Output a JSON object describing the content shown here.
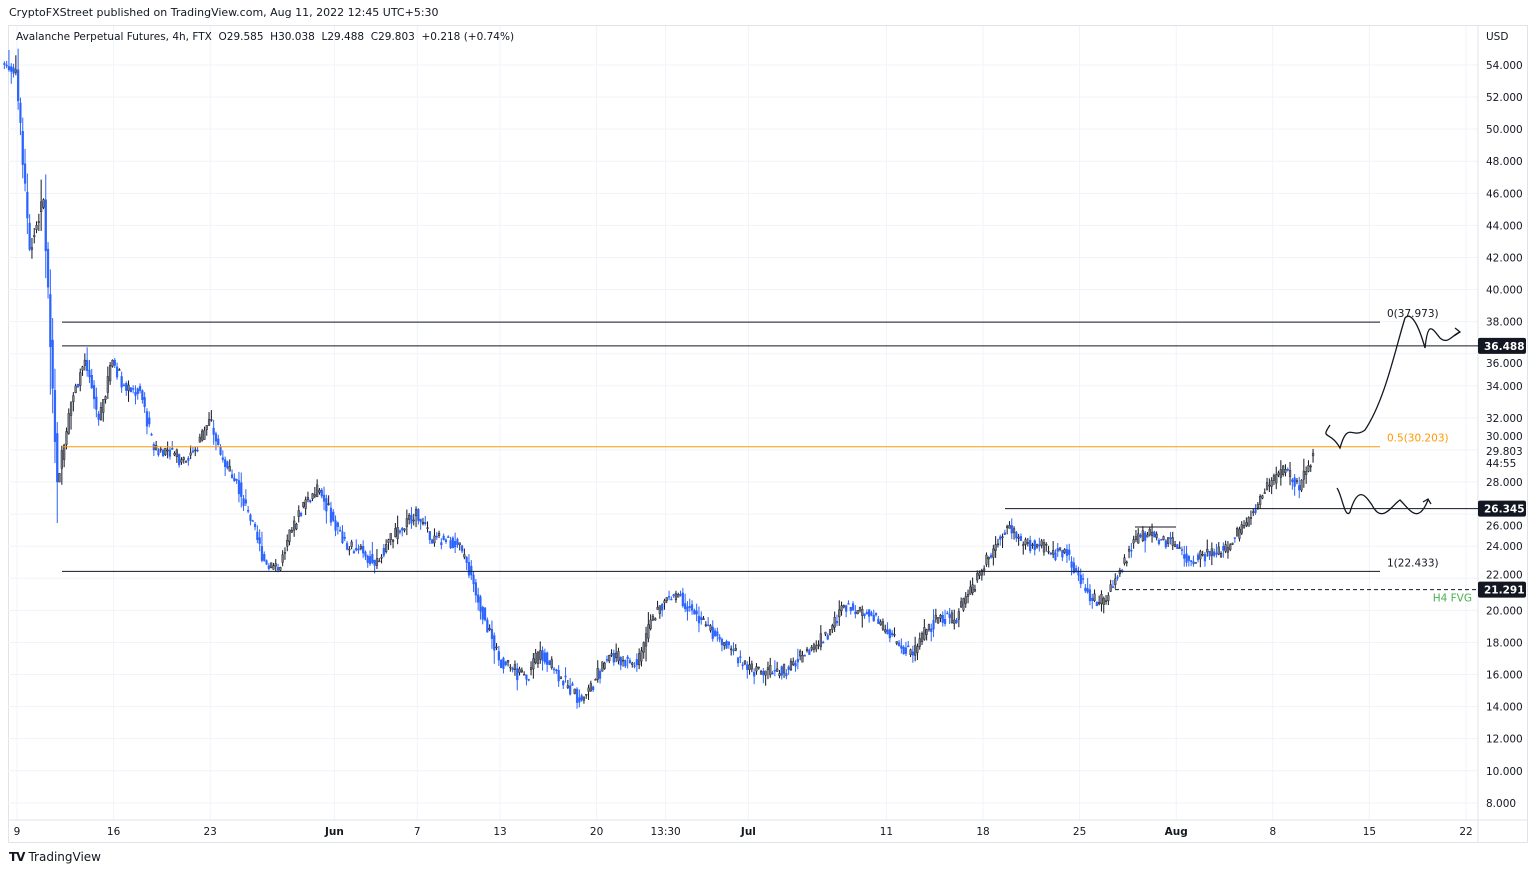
{
  "header": {
    "published": "CryptoFXStreet published on TradingView.com, Aug 11, 2022 12:45 UTC+5:30",
    "legend": "Avalanche Perpetual Futures, 4h, FTX  O29.585  H30.038  L29.488  C29.803  +0.218 (+0.74%)"
  },
  "footer": {
    "brand": "TradingView",
    "logo": "TV"
  },
  "chart_data": {
    "type": "candlestick",
    "title": "Avalanche Perpetual Futures, 4h, FTX",
    "currency": "USD",
    "ylim": [
      7,
      56
    ],
    "y_ticks": [
      "8.000",
      "10.000",
      "12.000",
      "14.000",
      "16.000",
      "18.000",
      "20.000",
      "22.000",
      "24.000",
      "26.000",
      "28.000",
      "30.000",
      "32.000",
      "34.000",
      "36.000",
      "38.000",
      "40.000",
      "42.000",
      "44.000",
      "46.000",
      "48.000",
      "50.000",
      "52.000",
      "54.000"
    ],
    "x_ticks": [
      {
        "label": "9",
        "date": "2022-05-09",
        "bold": false
      },
      {
        "label": "16",
        "date": "2022-05-16",
        "bold": false
      },
      {
        "label": "23",
        "date": "2022-05-23",
        "bold": false
      },
      {
        "label": "Jun",
        "date": "2022-06-01",
        "bold": true
      },
      {
        "label": "7",
        "date": "2022-06-07",
        "bold": false
      },
      {
        "label": "13",
        "date": "2022-06-13",
        "bold": false
      },
      {
        "label": "20",
        "date": "2022-06-20",
        "bold": false
      },
      {
        "label": "13:30",
        "date": "2022-06-25",
        "bold": false
      },
      {
        "label": "Jul",
        "date": "2022-07-01",
        "bold": true
      },
      {
        "label": "11",
        "date": "2022-07-11",
        "bold": false
      },
      {
        "label": "18",
        "date": "2022-07-18",
        "bold": false
      },
      {
        "label": "25",
        "date": "2022-07-25",
        "bold": false
      },
      {
        "label": "Aug",
        "date": "2022-08-01",
        "bold": true
      },
      {
        "label": "8",
        "date": "2022-08-08",
        "bold": false
      },
      {
        "label": "15",
        "date": "2022-08-15",
        "bold": false
      },
      {
        "label": "22",
        "date": "2022-08-22",
        "bold": false
      }
    ],
    "x_range": [
      "2022-05-09",
      "2022-08-24"
    ],
    "daily_close": [
      [
        "2022-05-09",
        53.7
      ],
      [
        "2022-05-10",
        42.5
      ],
      [
        "2022-05-11",
        45.6
      ],
      [
        "2022-05-12",
        28.0
      ],
      [
        "2022-05-13",
        33.0
      ],
      [
        "2022-05-14",
        35.6
      ],
      [
        "2022-05-15",
        31.9
      ],
      [
        "2022-05-16",
        35.6
      ],
      [
        "2022-05-17",
        33.7
      ],
      [
        "2022-05-18",
        33.7
      ],
      [
        "2022-05-19",
        30.0
      ],
      [
        "2022-05-20",
        30.0
      ],
      [
        "2022-05-21",
        29.4
      ],
      [
        "2022-05-22",
        30.0
      ],
      [
        "2022-05-23",
        31.9
      ],
      [
        "2022-05-24",
        29.4
      ],
      [
        "2022-05-25",
        28.1
      ],
      [
        "2022-05-26",
        25.6
      ],
      [
        "2022-05-27",
        23.1
      ],
      [
        "2022-05-28",
        22.5
      ],
      [
        "2022-05-29",
        25.0
      ],
      [
        "2022-05-30",
        26.9
      ],
      [
        "2022-05-31",
        27.5
      ],
      [
        "2022-06-01",
        25.6
      ],
      [
        "2022-06-02",
        23.8
      ],
      [
        "2022-06-03",
        24.0
      ],
      [
        "2022-06-04",
        22.8
      ],
      [
        "2022-06-05",
        24.4
      ],
      [
        "2022-06-06",
        25.0
      ],
      [
        "2022-06-07",
        26.3
      ],
      [
        "2022-06-08",
        24.4
      ],
      [
        "2022-06-09",
        24.4
      ],
      [
        "2022-06-10",
        24.1
      ],
      [
        "2022-06-11",
        22.2
      ],
      [
        "2022-06-12",
        19.4
      ],
      [
        "2022-06-13",
        16.9
      ],
      [
        "2022-06-14",
        16.3
      ],
      [
        "2022-06-15",
        15.7
      ],
      [
        "2022-06-16",
        17.5
      ],
      [
        "2022-06-17",
        16.3
      ],
      [
        "2022-06-18",
        15.3
      ],
      [
        "2022-06-19",
        14.4
      ],
      [
        "2022-06-20",
        15.7
      ],
      [
        "2022-06-21",
        17.2
      ],
      [
        "2022-06-22",
        16.9
      ],
      [
        "2022-06-23",
        16.6
      ],
      [
        "2022-06-24",
        19.4
      ],
      [
        "2022-06-25",
        20.6
      ],
      [
        "2022-06-26",
        21.0
      ],
      [
        "2022-06-27",
        20.0
      ],
      [
        "2022-06-28",
        19.1
      ],
      [
        "2022-06-29",
        18.2
      ],
      [
        "2022-06-30",
        17.5
      ],
      [
        "2022-07-01",
        16.3
      ],
      [
        "2022-07-02",
        16.2
      ],
      [
        "2022-07-03",
        16.2
      ],
      [
        "2022-07-04",
        16.3
      ],
      [
        "2022-07-05",
        17.2
      ],
      [
        "2022-07-06",
        17.8
      ],
      [
        "2022-07-07",
        18.8
      ],
      [
        "2022-07-08",
        20.3
      ],
      [
        "2022-07-09",
        20.0
      ],
      [
        "2022-07-10",
        19.7
      ],
      [
        "2022-07-11",
        18.8
      ],
      [
        "2022-07-12",
        17.8
      ],
      [
        "2022-07-13",
        17.2
      ],
      [
        "2022-07-14",
        18.8
      ],
      [
        "2022-07-15",
        19.7
      ],
      [
        "2022-07-16",
        19.4
      ],
      [
        "2022-07-17",
        21.0
      ],
      [
        "2022-07-18",
        22.5
      ],
      [
        "2022-07-19",
        24.1
      ],
      [
        "2022-07-20",
        25.3
      ],
      [
        "2022-07-21",
        24.1
      ],
      [
        "2022-07-22",
        24.1
      ],
      [
        "2022-07-23",
        23.5
      ],
      [
        "2022-07-24",
        23.8
      ],
      [
        "2022-07-25",
        22.2
      ],
      [
        "2022-07-26",
        20.6
      ],
      [
        "2022-07-27",
        20.6
      ],
      [
        "2022-07-28",
        22.5
      ],
      [
        "2022-07-29",
        24.4
      ],
      [
        "2022-07-30",
        24.7
      ],
      [
        "2022-07-31",
        24.4
      ],
      [
        "2022-08-01",
        24.1
      ],
      [
        "2022-08-02",
        23.1
      ],
      [
        "2022-08-03",
        23.5
      ],
      [
        "2022-08-04",
        23.5
      ],
      [
        "2022-08-05",
        24.1
      ],
      [
        "2022-08-06",
        25.3
      ],
      [
        "2022-08-07",
        26.6
      ],
      [
        "2022-08-08",
        28.1
      ],
      [
        "2022-08-09",
        28.8
      ],
      [
        "2022-08-10",
        27.5
      ],
      [
        "2022-08-11",
        29.803
      ]
    ],
    "last_price": {
      "value": "29.803",
      "countdown": "44:55"
    },
    "levels": [
      {
        "name": "fib-0",
        "price": 37.973,
        "label": "0(37.973)",
        "color": "#131722"
      },
      {
        "name": "resistance",
        "price": 36.488,
        "label": "36.488",
        "color": "#131722"
      },
      {
        "name": "fib-0.5",
        "price": 30.203,
        "label": "0.5(30.203)",
        "color": "#ff9800"
      },
      {
        "name": "support",
        "price": 26.345,
        "label": "26.345",
        "color": "#131722"
      },
      {
        "name": "fib-1",
        "price": 22.433,
        "label": "1(22.433)",
        "color": "#131722"
      },
      {
        "name": "h4-fvg",
        "price": 21.291,
        "label": "21.291",
        "tag": "H4 FVG",
        "color": "#4caf50"
      }
    ],
    "colors": {
      "up_body": "#787b86",
      "up_border": "#131722",
      "down": "#2962ff",
      "grid": "#f0f3fa"
    }
  }
}
